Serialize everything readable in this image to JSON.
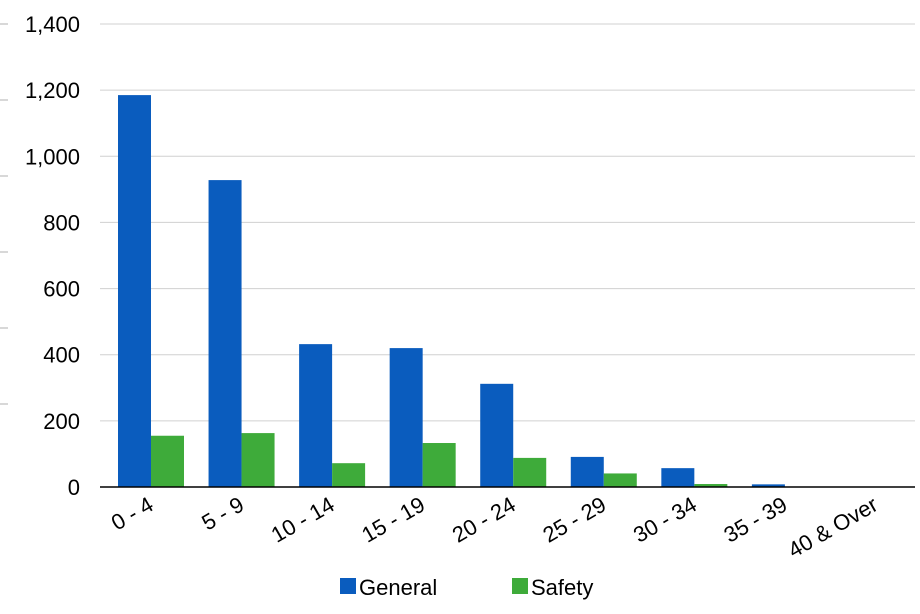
{
  "chart_data": {
    "type": "bar",
    "title": "",
    "xlabel": "",
    "ylabel": "",
    "categories": [
      "0 - 4",
      "5 - 9",
      "10 - 14",
      "15 - 19",
      "20 - 24",
      "25 - 29",
      "30 - 34",
      "35 - 39",
      "40 & Over"
    ],
    "series": [
      {
        "name": "General",
        "color": "#0a5cbe",
        "values": [
          1185,
          928,
          432,
          420,
          312,
          91,
          57,
          8,
          0
        ]
      },
      {
        "name": "Safety",
        "color": "#3eab3a",
        "values": [
          155,
          163,
          72,
          133,
          88,
          41,
          9,
          0,
          0
        ]
      }
    ],
    "ylim": [
      0,
      1400
    ],
    "yticks": [
      0,
      200,
      400,
      600,
      800,
      1000,
      1200,
      1400
    ],
    "ytick_labels": [
      "0",
      "200",
      "400",
      "600",
      "800",
      "1,000",
      "1,200",
      "1,400"
    ],
    "grid": true,
    "legend": "bottom-center"
  }
}
